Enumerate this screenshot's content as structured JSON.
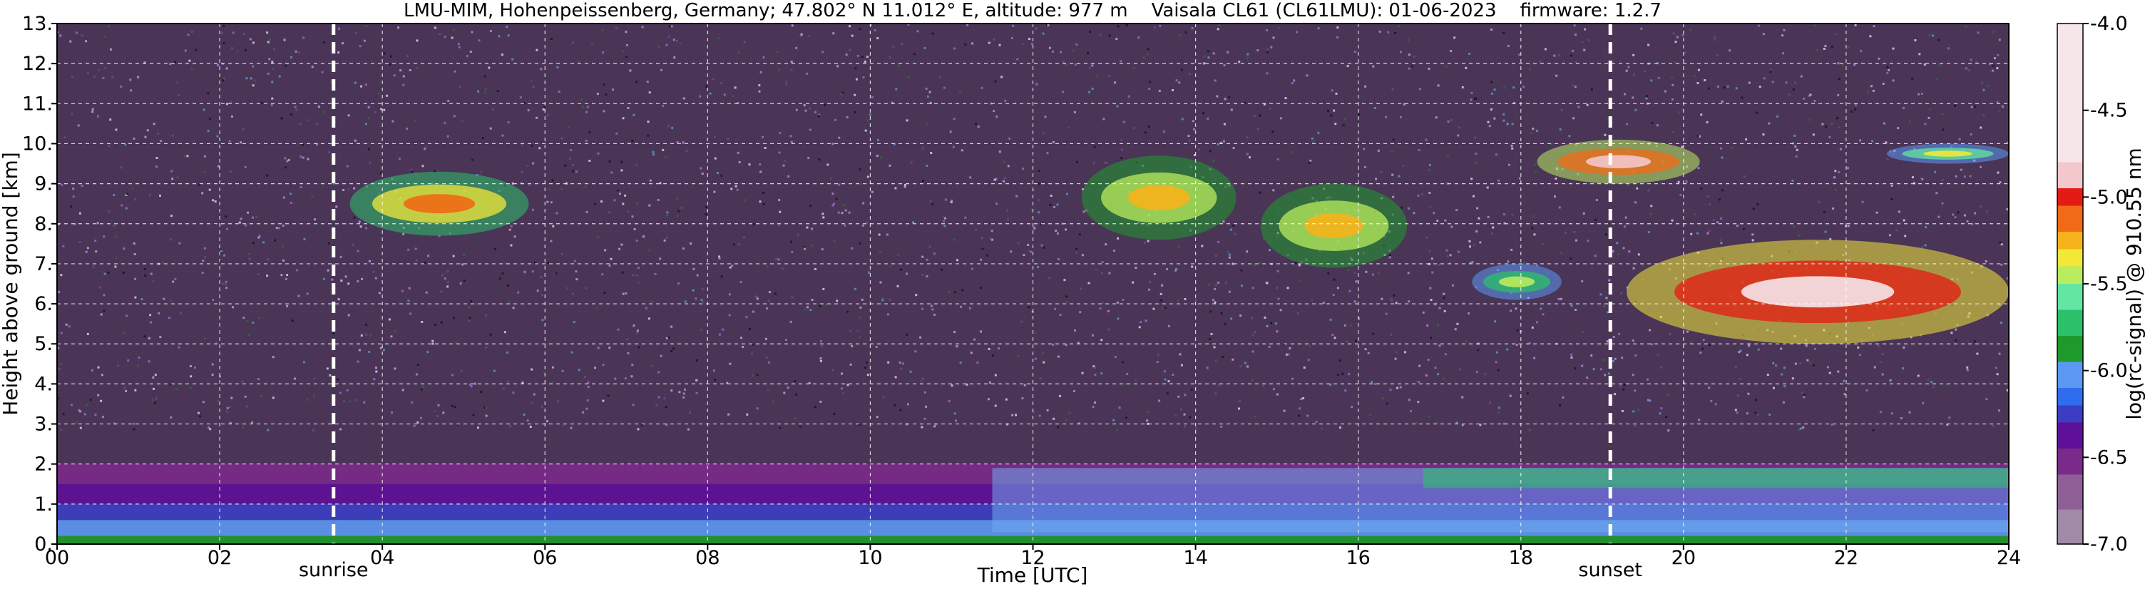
{
  "chart_data": {
    "type": "heatmap",
    "title": "LMU-MIM, Hohenpeissenberg, Germany; 47.802° N 11.012° E, altitude: 977 m    Vaisala CL61 (CL61LMU): 01-06-2023    firmware: 1.2.7",
    "xlabel": "Time [UTC]",
    "ylabel": "Height above ground [km]",
    "x_range": [
      0,
      24
    ],
    "y_range": [
      0,
      13
    ],
    "x_ticks": [
      0,
      2,
      4,
      6,
      8,
      10,
      12,
      14,
      16,
      18,
      20,
      22,
      24
    ],
    "x_tick_labels": [
      "00",
      "02",
      "04",
      "06",
      "08",
      "10",
      "12",
      "14",
      "16",
      "18",
      "20",
      "22",
      "24"
    ],
    "y_ticks": [
      0,
      1,
      2,
      3,
      4,
      5,
      6,
      7,
      8,
      9,
      10,
      11,
      12,
      13
    ],
    "y_tick_labels": [
      "0.",
      "1.",
      "2.",
      "3.",
      "4.",
      "5.",
      "6.",
      "7.",
      "8.",
      "9.",
      "10.",
      "11.",
      "12.",
      "13."
    ],
    "grid": true,
    "markers": [
      {
        "label": "sunrise",
        "time": 3.4
      },
      {
        "label": "sunset",
        "time": 19.1
      }
    ],
    "colorbar": {
      "label": "log(rc-signal) @ 910.55 nm",
      "range": [
        -7.0,
        -4.0
      ],
      "ticks": [
        -7.0,
        -6.5,
        -6.0,
        -5.5,
        -5.0,
        -4.5,
        -4.0
      ],
      "tick_labels": [
        "-7.0",
        "-6.5",
        "-6.0",
        "-5.5",
        "-5.0",
        "-4.5",
        "-4.0"
      ],
      "colors": [
        "#a08aa6",
        "#8e5f96",
        "#7a2a88",
        "#5f1098",
        "#3c3dc4",
        "#2f6cf0",
        "#5b98f2",
        "#1e9a2a",
        "#2bc06a",
        "#62e6a2",
        "#b9ec5e",
        "#f2e838",
        "#f6b21b",
        "#f06a17",
        "#e41b14",
        "#f3c8cc",
        "#f6e6ea",
        "#ffffff"
      ],
      "color_stops": [
        -7.0,
        -6.8,
        -6.6,
        -6.45,
        -6.3,
        -6.2,
        -6.1,
        -5.95,
        -5.8,
        -5.65,
        -5.5,
        -5.4,
        -5.3,
        -5.2,
        -5.05,
        -4.95,
        -4.8,
        -4.0
      ]
    },
    "features": [
      {
        "kind": "boundary_layer",
        "start": 0,
        "end": 24,
        "bottom": 0.0,
        "top": 2.0,
        "value": -6.2
      },
      {
        "kind": "cloud",
        "start": 3.6,
        "end": 5.8,
        "bottom": 7.7,
        "top": 9.3,
        "value": -5.2
      },
      {
        "kind": "cloud",
        "start": 12.6,
        "end": 14.5,
        "bottom": 7.6,
        "top": 9.7,
        "value": -5.3
      },
      {
        "kind": "cloud",
        "start": 14.8,
        "end": 16.6,
        "bottom": 6.9,
        "top": 9.0,
        "value": -5.3
      },
      {
        "kind": "cloud",
        "start": 17.4,
        "end": 18.5,
        "bottom": 6.1,
        "top": 7.0,
        "value": -5.5
      },
      {
        "kind": "cloud",
        "start": 18.2,
        "end": 20.2,
        "bottom": 9.0,
        "top": 10.1,
        "value": -4.9
      },
      {
        "kind": "cloud",
        "start": 19.3,
        "end": 24,
        "bottom": 5.0,
        "top": 7.6,
        "value": -4.8
      },
      {
        "kind": "cloud",
        "start": 22.5,
        "end": 24,
        "bottom": 9.5,
        "top": 10.0,
        "value": -5.4
      }
    ]
  }
}
